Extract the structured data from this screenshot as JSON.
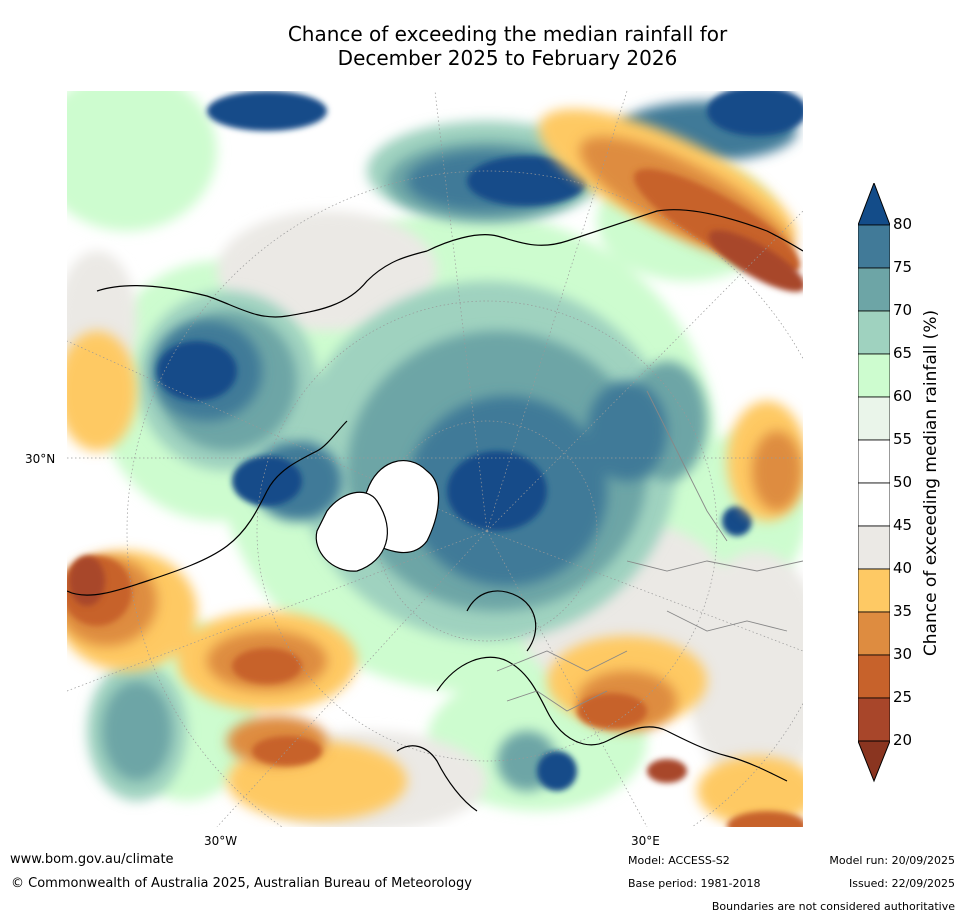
{
  "title": {
    "line1": "Chance of exceeding the median rainfall for",
    "line2": "December 2025 to February 2026"
  },
  "map": {
    "lat_label": "30°N",
    "lon_labels": [
      "30°W",
      "30°E"
    ],
    "colors": {
      "ocean_white": "#ffffff",
      "grey": "#ebe9e5",
      "light_green": "#cdfccf",
      "mid_green": "#9fd2bf",
      "teal": "#6da5a6",
      "steel_blue": "#417a98",
      "dark_blue": "#134c89",
      "light_orange": "#fec964",
      "orange": "#de8c40",
      "dark_orange": "#c7622b",
      "brown": "#a8462a",
      "coast": "#000000",
      "border": "#888888"
    }
  },
  "legend": {
    "label": "Chance of exceeding median rainfall (%)",
    "ticks": [
      "80",
      "75",
      "70",
      "65",
      "60",
      "55",
      "50",
      "45",
      "40",
      "35",
      "30",
      "25",
      "20"
    ],
    "colors": [
      "#134c89",
      "#417a98",
      "#6da5a6",
      "#9fd2bf",
      "#cdfccf",
      "#eaf5ea",
      "#ffffff",
      "#ffffff",
      "#ebe9e5",
      "#fec964",
      "#de8c40",
      "#c7622b",
      "#a8462a",
      "#8a3520"
    ]
  },
  "footer": {
    "website": "www.bom.gov.au/climate",
    "copyright": "© Commonwealth of Australia 2025, Australian Bureau of Meteorology",
    "model": "Model: ACCESS-S2",
    "base_period": "Base period: 1981-2018",
    "model_run": "Model run: 20/09/2025",
    "issued": "Issued: 22/09/2025",
    "disclaimer": "Boundaries are not considered authoritative"
  }
}
